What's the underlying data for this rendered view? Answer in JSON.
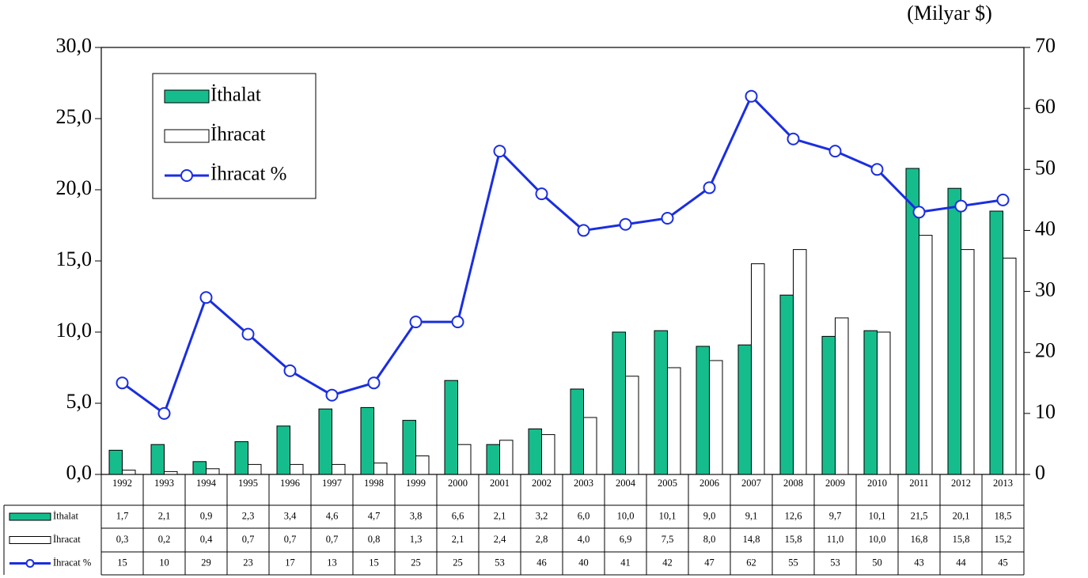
{
  "chart_data": {
    "type": "bar",
    "unit_label": "(Milyar $)",
    "categories": [
      "1992",
      "1993",
      "1994",
      "1995",
      "1996",
      "1997",
      "1998",
      "1999",
      "2000",
      "2001",
      "2002",
      "2003",
      "2004",
      "2005",
      "2006",
      "2007",
      "2008",
      "2009",
      "2010",
      "2011",
      "2012",
      "2013"
    ],
    "series": [
      {
        "name": "İthalat",
        "type": "bar",
        "color": "#16bd8c",
        "values": [
          1.7,
          2.1,
          0.9,
          2.3,
          3.4,
          4.6,
          4.7,
          3.8,
          6.6,
          2.1,
          3.2,
          6.0,
          10.0,
          10.1,
          9.0,
          9.1,
          12.6,
          9.7,
          10.1,
          21.5,
          20.1,
          18.5
        ],
        "value_labels": [
          "1,7",
          "2,1",
          "0,9",
          "2,3",
          "3,4",
          "4,6",
          "4,7",
          "3,8",
          "6,6",
          "2,1",
          "3,2",
          "6,0",
          "10,0",
          "10,1",
          "9,0",
          "9,1",
          "12,6",
          "9,7",
          "10,1",
          "21,5",
          "20,1",
          "18,5"
        ]
      },
      {
        "name": "İhracat",
        "type": "bar",
        "color": "#ffffff",
        "values": [
          0.3,
          0.2,
          0.4,
          0.7,
          0.7,
          0.7,
          0.8,
          1.3,
          2.1,
          2.4,
          2.8,
          4.0,
          6.9,
          7.5,
          8.0,
          14.8,
          15.8,
          11.0,
          10.0,
          16.8,
          15.8,
          15.2
        ],
        "value_labels": [
          "0,3",
          "0,2",
          "0,4",
          "0,7",
          "0,7",
          "0,7",
          "0,8",
          "1,3",
          "2,1",
          "2,4",
          "2,8",
          "4,0",
          "6,9",
          "7,5",
          "8,0",
          "14,8",
          "15,8",
          "11,0",
          "10,0",
          "16,8",
          "15,8",
          "15,2"
        ]
      },
      {
        "name": "İhracat %",
        "type": "line",
        "axis": "y2",
        "color": "#1a2ee0",
        "values": [
          15,
          10,
          29,
          23,
          17,
          13,
          15,
          25,
          25,
          53,
          46,
          40,
          41,
          42,
          47,
          62,
          55,
          53,
          50,
          43,
          44,
          45
        ]
      }
    ],
    "ylim": [
      0,
      30
    ],
    "yticks": [
      {
        "value": 0,
        "label": "0,0"
      },
      {
        "value": 5,
        "label": "5,0"
      },
      {
        "value": 10,
        "label": "10,0"
      },
      {
        "value": 15,
        "label": "15,0"
      },
      {
        "value": 20,
        "label": "20,0"
      },
      {
        "value": 25,
        "label": "25,0"
      },
      {
        "value": 30,
        "label": "30,0"
      }
    ],
    "y2lim": [
      0,
      70
    ],
    "y2ticks": [
      0,
      10,
      20,
      30,
      40,
      50,
      60,
      70
    ],
    "grid": false,
    "legend": "upper left"
  }
}
